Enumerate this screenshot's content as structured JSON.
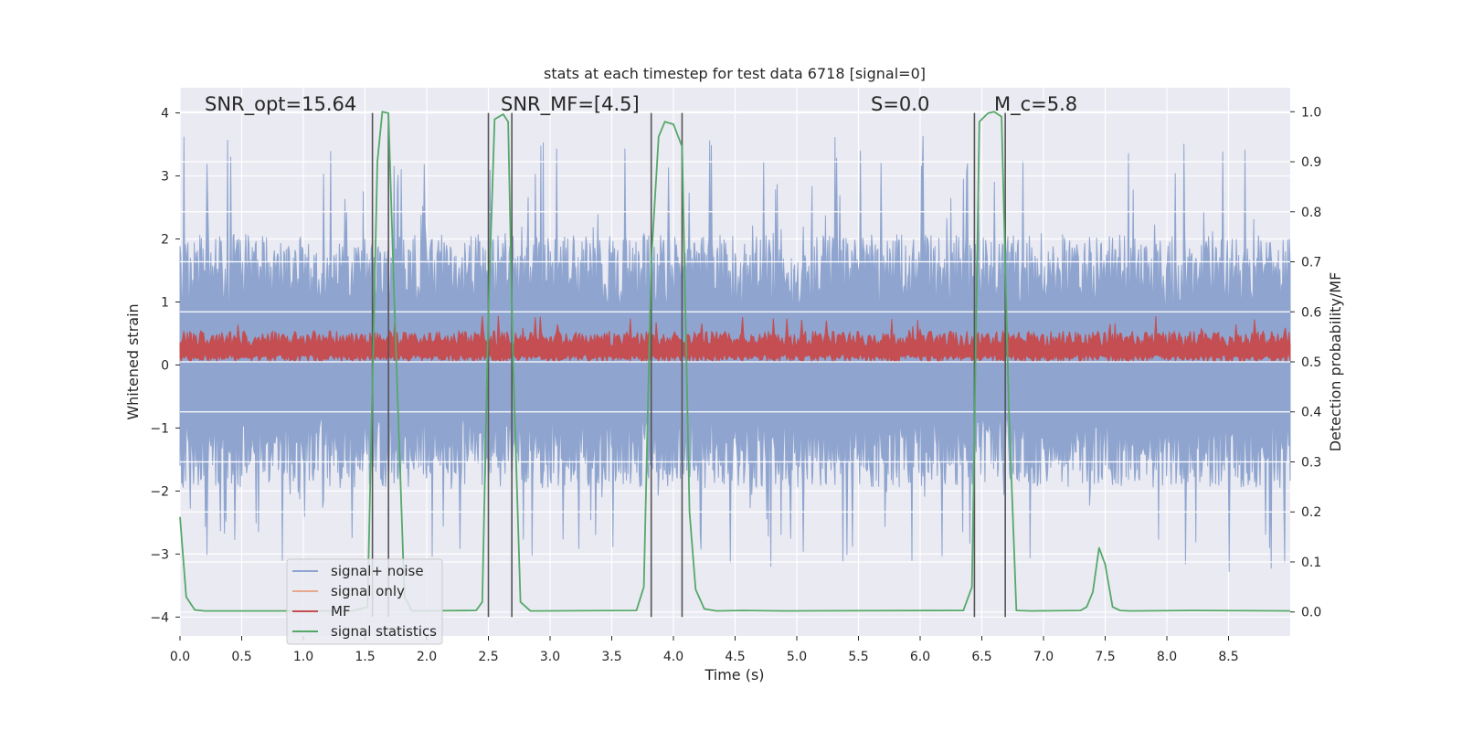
{
  "chart_data": {
    "type": "line",
    "title": "stats at each timestep for test data 6718 [signal=0]",
    "xlabel": "Time (s)",
    "ylabel_left": "Whitened strain",
    "ylabel_right": "Detection probability/MF",
    "xlim": [
      0.0,
      9.0
    ],
    "ylim_left": [
      -4.3,
      4.4
    ],
    "ylim_right": [
      -0.048,
      1.048
    ],
    "grid": true,
    "x_ticks": [
      0.0,
      0.5,
      1.0,
      1.5,
      2.0,
      2.5,
      3.0,
      3.5,
      4.0,
      4.5,
      5.0,
      5.5,
      6.0,
      6.5,
      7.0,
      7.5,
      8.0,
      8.5
    ],
    "x_tick_labels": [
      "0.0",
      "0.5",
      "1.0",
      "1.5",
      "2.0",
      "2.5",
      "3.0",
      "3.5",
      "4.0",
      "4.5",
      "5.0",
      "5.5",
      "6.0",
      "6.5",
      "7.0",
      "7.5",
      "8.0",
      "8.5"
    ],
    "y_left_ticks": [
      -4,
      -3,
      -2,
      -1,
      0,
      1,
      2,
      3,
      4
    ],
    "y_left_tick_labels": [
      "−4",
      "−3",
      "−2",
      "−1",
      "0",
      "1",
      "2",
      "3",
      "4"
    ],
    "y_right_ticks": [
      0.0,
      0.1,
      0.2,
      0.3,
      0.4,
      0.5,
      0.6,
      0.7,
      0.8,
      0.9,
      1.0
    ],
    "y_right_tick_labels": [
      "0.0",
      "0.1",
      "0.2",
      "0.3",
      "0.4",
      "0.5",
      "0.6",
      "0.7",
      "0.8",
      "0.9",
      "1.0"
    ],
    "annotations": [
      {
        "text": "SNR_opt=15.64",
        "x": 0.2
      },
      {
        "text": "SNR_MF=[4.5]",
        "x": 2.6
      },
      {
        "text": "S=0.0",
        "x": 5.6
      },
      {
        "text": "M_c=5.8",
        "x": 6.6
      }
    ],
    "vertical_lines": [
      1.56,
      1.69,
      2.5,
      2.69,
      3.82,
      4.07,
      6.44,
      6.69
    ],
    "noise_band": {
      "seed": 6718,
      "upper_typical": 1.6,
      "upper_peak": 4.0,
      "lower_typical": -1.5,
      "lower_peak": -3.9
    },
    "mf_band": {
      "seed": 42,
      "lower": 0.05,
      "upper_typical": 0.45,
      "upper_peak": 1.0
    },
    "series": [
      {
        "name": "signal+ noise",
        "color": "#8fa5cf",
        "axis": "left"
      },
      {
        "name": "signal only",
        "color": "#e8a88e",
        "axis": "left",
        "values": []
      },
      {
        "name": "MF",
        "color": "#c44e52",
        "axis": "left"
      },
      {
        "name": "signal statistics",
        "color": "#55a868",
        "axis": "right",
        "x": [
          0.0,
          0.05,
          0.12,
          0.2,
          1.4,
          1.52,
          1.6,
          1.64,
          1.69,
          1.74,
          1.82,
          1.88,
          2.4,
          2.45,
          2.5,
          2.55,
          2.62,
          2.66,
          2.7,
          2.76,
          2.84,
          2.9,
          3.7,
          3.76,
          3.82,
          3.88,
          3.93,
          4.0,
          4.07,
          4.13,
          4.18,
          4.25,
          4.35,
          4.55,
          4.9,
          6.35,
          6.42,
          6.48,
          6.55,
          6.6,
          6.66,
          6.72,
          6.78,
          6.9,
          7.3,
          7.35,
          7.4,
          7.45,
          7.5,
          7.56,
          7.62,
          7.7,
          8.2,
          9.0
        ],
        "values": [
          0.19,
          0.03,
          0.004,
          0.002,
          0.002,
          0.01,
          0.9,
          1.0,
          0.997,
          0.6,
          0.03,
          0.002,
          0.003,
          0.02,
          0.6,
          0.985,
          0.995,
          0.98,
          0.5,
          0.02,
          0.002,
          0.002,
          0.003,
          0.05,
          0.7,
          0.95,
          0.98,
          0.975,
          0.93,
          0.2,
          0.045,
          0.006,
          0.002,
          0.003,
          0.002,
          0.003,
          0.05,
          0.98,
          0.997,
          1.0,
          0.99,
          0.4,
          0.003,
          0.002,
          0.003,
          0.01,
          0.04,
          0.128,
          0.095,
          0.01,
          0.003,
          0.002,
          0.003,
          0.002
        ]
      }
    ],
    "legend": {
      "location": "lower-left",
      "entries": [
        "signal+ noise",
        "signal only",
        "MF",
        "signal statistics"
      ]
    }
  }
}
